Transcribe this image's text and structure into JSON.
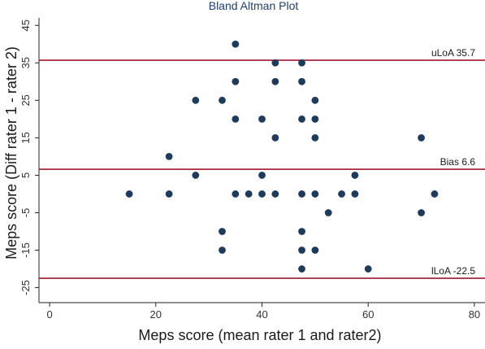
{
  "chart_data": {
    "type": "scatter",
    "title": "Bland Altman Plot",
    "xlabel": "Meps score (mean rater 1 and rater2)",
    "ylabel": "Meps score (Diff rater 1 - rater 2)",
    "xlim": [
      -2,
      82
    ],
    "ylim": [
      -29,
      47
    ],
    "xticks": [
      0,
      20,
      40,
      60,
      80
    ],
    "yticks": [
      45,
      35,
      25,
      15,
      5,
      -5,
      -15,
      -25
    ],
    "grid": false,
    "colors": {
      "points": "#1f3b5c",
      "reference_lines": "#a0182e",
      "title": "#1f3f6e"
    },
    "points": [
      {
        "x": 15,
        "y": 0
      },
      {
        "x": 22.5,
        "y": 10
      },
      {
        "x": 22.5,
        "y": 0
      },
      {
        "x": 27.5,
        "y": 25
      },
      {
        "x": 27.5,
        "y": 5
      },
      {
        "x": 32.5,
        "y": 25
      },
      {
        "x": 32.5,
        "y": -10
      },
      {
        "x": 32.5,
        "y": -15
      },
      {
        "x": 35,
        "y": 40
      },
      {
        "x": 35,
        "y": 30
      },
      {
        "x": 35,
        "y": 20
      },
      {
        "x": 35,
        "y": 0
      },
      {
        "x": 37.5,
        "y": 0
      },
      {
        "x": 40,
        "y": 20
      },
      {
        "x": 40,
        "y": 5
      },
      {
        "x": 40,
        "y": 0
      },
      {
        "x": 42.5,
        "y": 35
      },
      {
        "x": 42.5,
        "y": 30
      },
      {
        "x": 42.5,
        "y": 15
      },
      {
        "x": 42.5,
        "y": 0
      },
      {
        "x": 47.5,
        "y": 35
      },
      {
        "x": 47.5,
        "y": 30
      },
      {
        "x": 47.5,
        "y": 20
      },
      {
        "x": 47.5,
        "y": 0
      },
      {
        "x": 47.5,
        "y": -10
      },
      {
        "x": 47.5,
        "y": -15
      },
      {
        "x": 47.5,
        "y": -20
      },
      {
        "x": 50,
        "y": 25
      },
      {
        "x": 50,
        "y": 20
      },
      {
        "x": 50,
        "y": 15
      },
      {
        "x": 50,
        "y": 0
      },
      {
        "x": 50,
        "y": -15
      },
      {
        "x": 52.5,
        "y": -5
      },
      {
        "x": 55,
        "y": 0
      },
      {
        "x": 57.5,
        "y": 5
      },
      {
        "x": 57.5,
        "y": 0
      },
      {
        "x": 60,
        "y": -20
      },
      {
        "x": 70,
        "y": 15
      },
      {
        "x": 70,
        "y": -5
      },
      {
        "x": 72.5,
        "y": 0
      }
    ],
    "reference_lines": [
      {
        "label": "uLoA 35.7",
        "y": 35.7
      },
      {
        "label": "Bias 6.6",
        "y": 6.6
      },
      {
        "label": "lLoA -22.5",
        "y": -22.5
      }
    ]
  }
}
